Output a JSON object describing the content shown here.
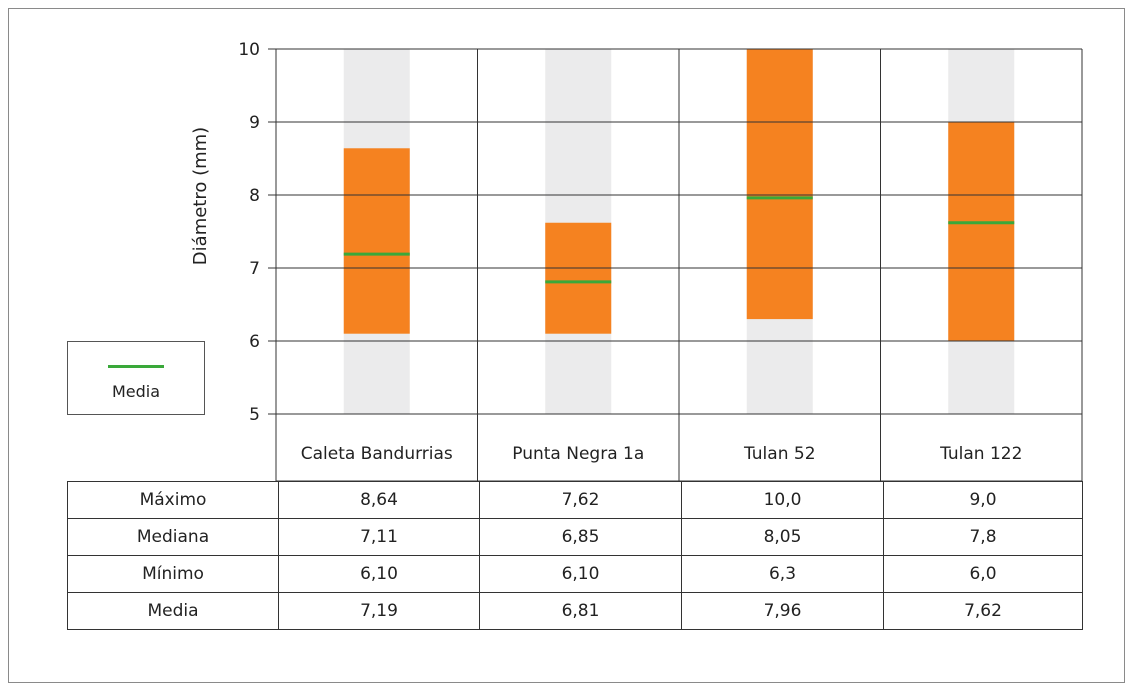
{
  "chart_data": {
    "type": "box",
    "ylabel": "Diámetro (mm)",
    "ylim": [
      5,
      10
    ],
    "yticks": [
      5,
      6,
      7,
      8,
      9,
      10
    ],
    "grid": true,
    "categories": [
      "Caleta Bandurrias",
      "Punta Negra 1a",
      "Tulan 52",
      "Tulan 122"
    ],
    "max": [
      8.64,
      7.62,
      10.0,
      9.0
    ],
    "median": [
      7.11,
      6.85,
      8.05,
      7.8
    ],
    "min": [
      6.1,
      6.1,
      6.3,
      6.0
    ],
    "mean": [
      7.19,
      6.81,
      7.96,
      7.62
    ],
    "legend": [
      {
        "name": "Media",
        "color": "#3aa83a"
      }
    ],
    "legend_position": "left",
    "colors": {
      "range": "#f58220",
      "background": "#ebebec",
      "mean": "#3aa83a"
    }
  },
  "table": {
    "rows": [
      {
        "label": "Máximo",
        "values": [
          "8,64",
          "7,62",
          "10,0",
          "9,0"
        ]
      },
      {
        "label": "Mediana",
        "values": [
          "7,11",
          "6,85",
          "8,05",
          "7,8"
        ]
      },
      {
        "label": "Mínimo",
        "values": [
          "6,10",
          "6,10",
          "6,3",
          "6,0"
        ]
      },
      {
        "label": "Media",
        "values": [
          "7,19",
          "6,81",
          "7,96",
          "7,62"
        ]
      }
    ]
  }
}
